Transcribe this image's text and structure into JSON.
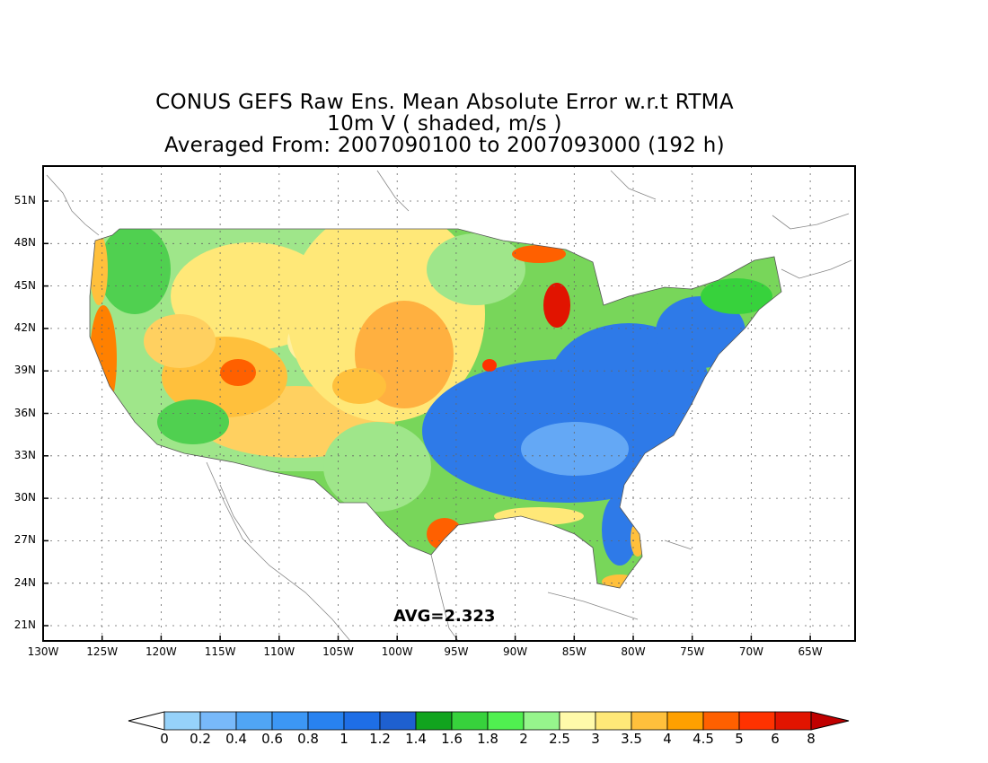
{
  "title": {
    "line1": "CONUS GEFS Raw Ens. Mean Absolute Error w.r.t RTMA",
    "line2": "10m V ( shaded, m/s )",
    "line3": "Averaged From: 2007090100 to 2007093000 (192 h)"
  },
  "map": {
    "lat_ticks": [
      "51N",
      "48N",
      "45N",
      "42N",
      "39N",
      "36N",
      "33N",
      "30N",
      "27N",
      "24N",
      "21N"
    ],
    "lon_ticks": [
      "130W",
      "125W",
      "120W",
      "115W",
      "110W",
      "105W",
      "100W",
      "95W",
      "90W",
      "85W",
      "80W",
      "75W",
      "70W",
      "65W"
    ],
    "average_label": "AVG=2.323",
    "grid": true,
    "grid_style": "dotted"
  },
  "colorbar": {
    "labels": [
      "0",
      "0.2",
      "0.4",
      "0.6",
      "0.8",
      "1",
      "1.2",
      "1.4",
      "1.6",
      "1.8",
      "2",
      "2.5",
      "3",
      "3.5",
      "4",
      "4.5",
      "5",
      "6",
      "8"
    ],
    "colors": [
      "#ffffff",
      "#96d2fa",
      "#78b9fa",
      "#50a5f5",
      "#3c97f5",
      "#2882f0",
      "#1e6ee6",
      "#1e60d0",
      "#11a41e",
      "#37d23c",
      "#50f050",
      "#96f58c",
      "#fffaaa",
      "#ffe878",
      "#ffc03c",
      "#ffa000",
      "#ff6000",
      "#ff3200",
      "#e11400",
      "#c00000"
    ],
    "lower_extend_color": "#ffffff",
    "upper_extend_color": "#c00000"
  }
}
